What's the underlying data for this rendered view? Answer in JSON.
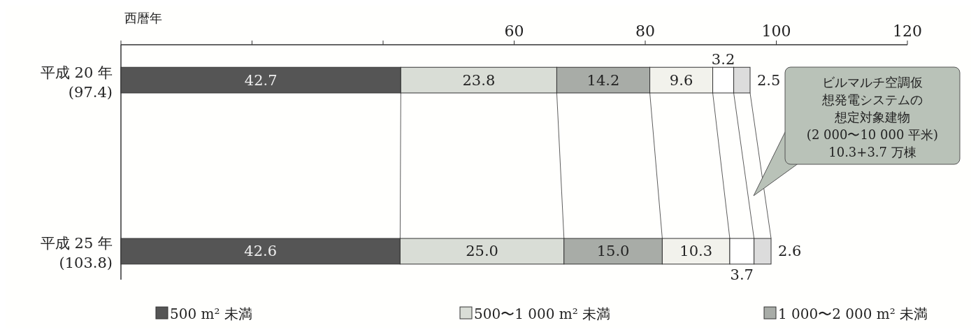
{
  "chart_data": {
    "type": "bar",
    "orientation": "horizontal",
    "stacked": true,
    "xlabel": "西暦年",
    "categories": [
      "平成 20 年\n(97.4)",
      "平成 25 年\n(103.8)"
    ],
    "series": [
      {
        "name": "500 m² 未満",
        "color": "#555555",
        "values": [
          42.7,
          42.6
        ],
        "value_labels": [
          "42.7",
          "42.6"
        ]
      },
      {
        "name": "500〜1 000 m² 未満",
        "color": "#d9ddd6",
        "values": [
          23.8,
          25.0
        ],
        "value_labels": [
          "23.8",
          "25.0"
        ]
      },
      {
        "name": "1 000〜2 000 m² 未満",
        "color": "#a8aca7",
        "values": [
          14.2,
          15.0
        ],
        "value_labels": [
          "14.2",
          "15.0"
        ]
      },
      {
        "color": "#f2f2ec",
        "values": [
          9.6,
          10.3
        ],
        "value_labels": [
          "9.6",
          "10.3"
        ]
      },
      {
        "color": "#ffffff",
        "values": [
          3.2,
          3.7
        ],
        "value_labels": [
          "3.2",
          "3.7"
        ]
      },
      {
        "color": "#dcdcdc",
        "values": [
          2.5,
          2.6
        ],
        "value_labels": [
          "2.5",
          "2.6"
        ]
      }
    ],
    "xlim": [
      0,
      120
    ],
    "xticks": [
      {
        "value": 0,
        "label": null
      },
      {
        "value": 20,
        "label": null
      },
      {
        "value": 40,
        "label": null
      },
      60,
      80,
      100,
      120
    ],
    "annotations": [
      "ビルマルチ空調仮想発電システムの想定対象建物(2 000〜10 000 平米)10.3+3.7 万棟"
    ],
    "legend": "bottom"
  }
}
